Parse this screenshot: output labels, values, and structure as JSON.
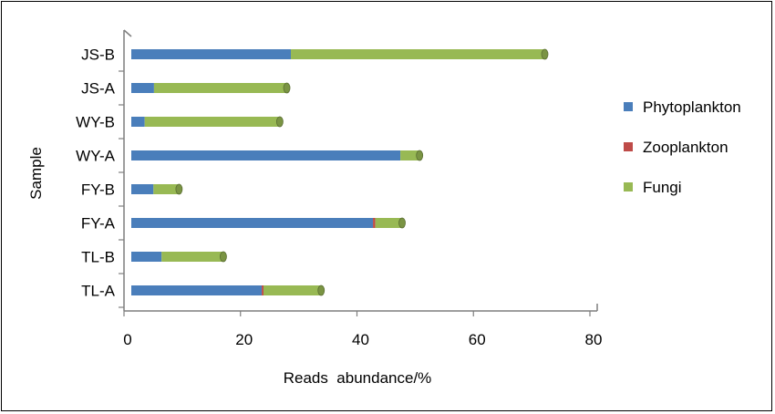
{
  "chart_data": {
    "type": "bar",
    "orientation": "horizontal",
    "stacked": true,
    "title": "",
    "xlabel": "Reads  abundance/%",
    "ylabel": "Sample",
    "xlim": [
      0,
      80
    ],
    "xticks": [
      "0",
      "20",
      "40",
      "60",
      "80"
    ],
    "categories": [
      "TL-A",
      "TL-B",
      "FY-A",
      "FY-B",
      "WY-A",
      "WY-B",
      "JS-A",
      "JS-B"
    ],
    "series": [
      {
        "name": "Phytoplankton",
        "color": "#4a7ebb",
        "values": [
          22.4,
          5.2,
          41.5,
          3.8,
          46.2,
          2.3,
          3.9,
          27.4
        ]
      },
      {
        "name": "Zooplankton",
        "color": "#be4b48",
        "values": [
          0.3,
          0.0,
          0.4,
          0.0,
          0.0,
          0.0,
          0.0,
          0.0
        ]
      },
      {
        "name": "Fungi",
        "color": "#98b954",
        "values": [
          9.9,
          10.6,
          4.6,
          4.4,
          3.3,
          23.2,
          22.8,
          43.6
        ]
      }
    ],
    "legend_position": "right",
    "grid": false
  }
}
